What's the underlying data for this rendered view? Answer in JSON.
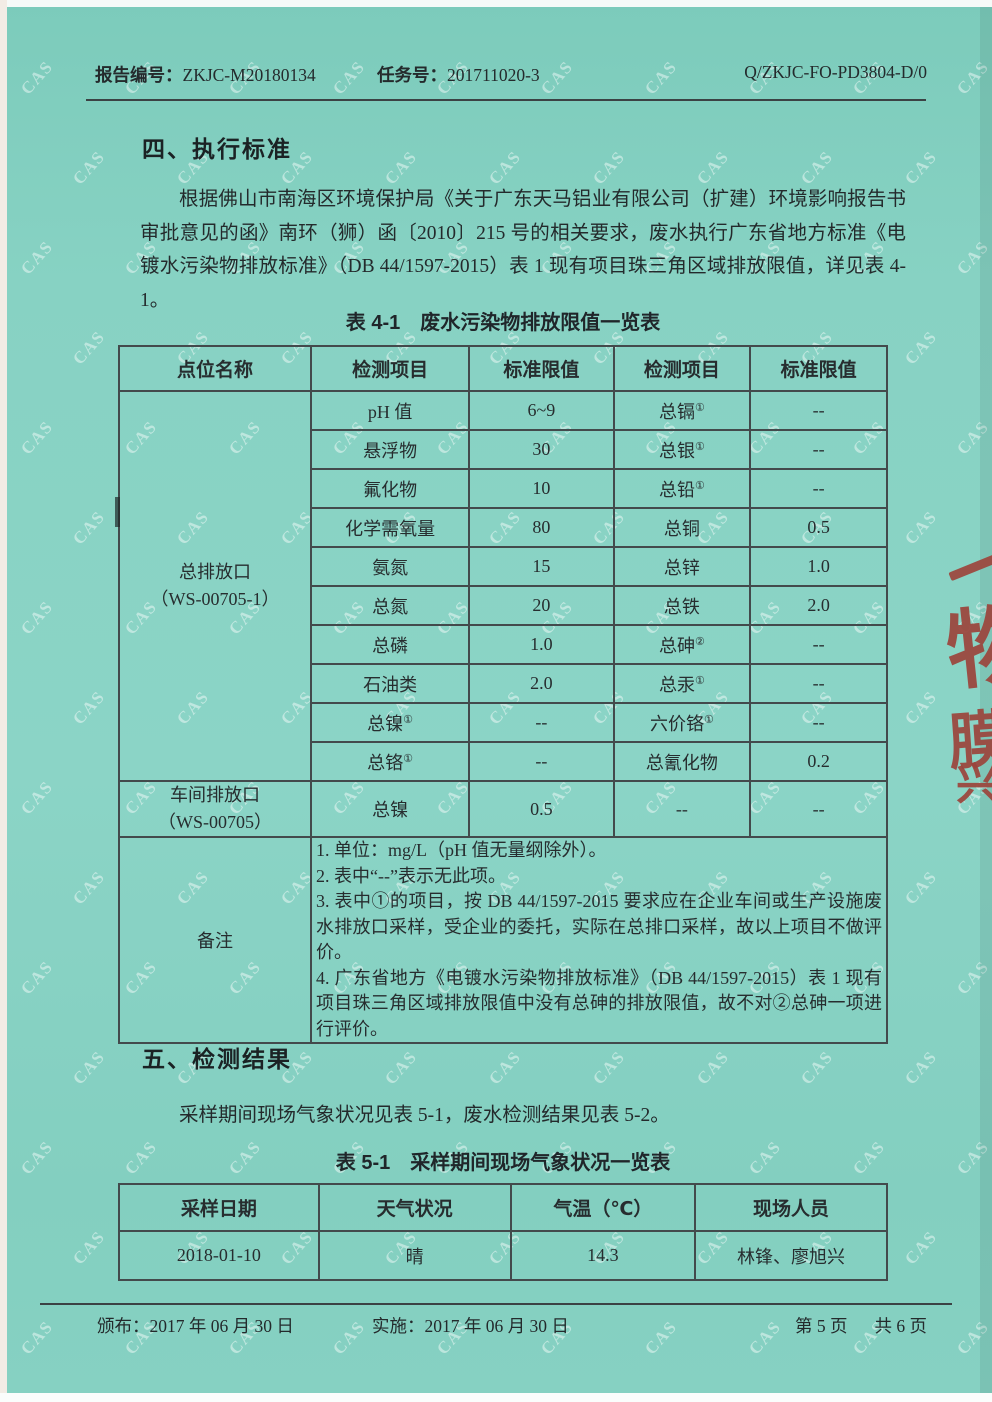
{
  "watermark": {
    "text": "CAS"
  },
  "header": {
    "report_label": "报告编号：",
    "report_no": "ZKJC-M20180134",
    "task_label": "任务号：",
    "task_no": "201711020-3",
    "doc_code": "Q/ZKJC-FO-PD3804-D/0"
  },
  "section4": {
    "heading": "四、执行标准",
    "paragraph": "根据佛山市南海区环境保护局《关于广东天马铝业有限公司（扩建）环境影响报告书审批意见的函》南环（狮）函〔2010〕215 号的相关要求，废水执行广东省地方标准《电镀水污染物排放标准》（DB 44/1597-2015）表 1 现有项目珠三角区域排放限值，详见表 4-1。"
  },
  "table4": {
    "title": "表 4-1　废水污染物排放限值一览表",
    "headers": [
      "点位名称",
      "检测项目",
      "标准限值",
      "检测项目",
      "标准限值"
    ],
    "main_outlet": {
      "name": "总排放口",
      "code": "（WS-00705-1）"
    },
    "rows": [
      {
        "item1": "pH 值",
        "sup1": "",
        "limit1": "6~9",
        "item2": "总镉",
        "sup2": "①",
        "limit2": "--"
      },
      {
        "item1": "悬浮物",
        "sup1": "",
        "limit1": "30",
        "item2": "总银",
        "sup2": "①",
        "limit2": "--"
      },
      {
        "item1": "氟化物",
        "sup1": "",
        "limit1": "10",
        "item2": "总铅",
        "sup2": "①",
        "limit2": "--"
      },
      {
        "item1": "化学需氧量",
        "sup1": "",
        "limit1": "80",
        "item2": "总铜",
        "sup2": "",
        "limit2": "0.5"
      },
      {
        "item1": "氨氮",
        "sup1": "",
        "limit1": "15",
        "item2": "总锌",
        "sup2": "",
        "limit2": "1.0"
      },
      {
        "item1": "总氮",
        "sup1": "",
        "limit1": "20",
        "item2": "总铁",
        "sup2": "",
        "limit2": "2.0"
      },
      {
        "item1": "总磷",
        "sup1": "",
        "limit1": "1.0",
        "item2": "总砷",
        "sup2": "②",
        "limit2": "--"
      },
      {
        "item1": "石油类",
        "sup1": "",
        "limit1": "2.0",
        "item2": "总汞",
        "sup2": "①",
        "limit2": "--"
      },
      {
        "item1": "总镍",
        "sup1": "①",
        "limit1": "--",
        "item2": "六价铬",
        "sup2": "①",
        "limit2": "--"
      },
      {
        "item1": "总铬",
        "sup1": "①",
        "limit1": "--",
        "item2": "总氰化物",
        "sup2": "",
        "limit2": "0.2"
      }
    ],
    "workshop": {
      "name": "车间排放口",
      "code": "（WS-00705）",
      "item": "总镍",
      "limit": "0.5",
      "item2": "--",
      "limit2": "--"
    },
    "remark_label": "备注",
    "remarks": [
      "1.  单位：mg/L（pH 值无量纲除外）。",
      "2.  表中“--”表示无此项。",
      "3.  表中①的项目，按 DB 44/1597-2015 要求应在企业车间或生产设施废水排放口采样，受企业的委托，实际在总排口采样，故以上项目不做评价。",
      "4.  广东省地方《电镀水污染物排放标准》（DB 44/1597-2015）表 1 现有项目珠三角区域排放限值中没有总砷的排放限值，故不对②总砷一项进行评价。"
    ]
  },
  "section5": {
    "heading": "五、检测结果",
    "paragraph": "采样期间现场气象状况见表 5-1，废水检测结果见表 5-2。"
  },
  "table5": {
    "title": "表 5-1　采样期间现场气象状况一览表",
    "headers": [
      "采样日期",
      "天气状况",
      "气温（℃）",
      "现场人员"
    ],
    "rows": [
      [
        "2018-01-10",
        "晴",
        "14.3",
        "林锋、廖旭兴"
      ]
    ]
  },
  "footer": {
    "issued": "颁布：2017 年 06 月 30 日",
    "implemented": "实施：2017 年 06 月 30 日",
    "page": "第 5 页",
    "total": "共 6 页"
  },
  "stamp": {
    "fragments": [
      "物",
      "膜",
      "兴"
    ]
  }
}
